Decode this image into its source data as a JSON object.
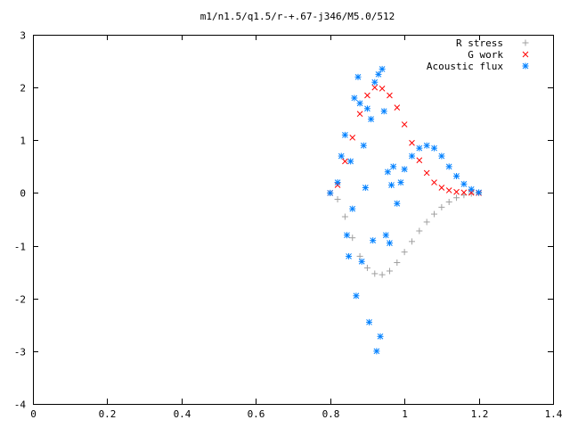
{
  "chart_data": {
    "type": "scatter",
    "title": "m1/n1.5/q1.5/r-+.67-j346/M5.0/512",
    "xlabel": "",
    "ylabel": "",
    "xlim": [
      0,
      1.4
    ],
    "ylim": [
      -4,
      3
    ],
    "x_ticks": [
      "0",
      "0.2",
      "0.4",
      "0.6",
      "0.8",
      "1",
      "1.2",
      "1.4"
    ],
    "y_ticks": [
      "-4",
      "-3",
      "-2",
      "-1",
      "0",
      "1",
      "2",
      "3"
    ],
    "grid": false,
    "legend_position": "top-right",
    "series": [
      {
        "name": "R stress",
        "marker": "+",
        "color": "#a0a0a0",
        "x": [
          0.8,
          0.82,
          0.84,
          0.86,
          0.88,
          0.9,
          0.92,
          0.94,
          0.96,
          0.98,
          1.0,
          1.02,
          1.04,
          1.06,
          1.08,
          1.1,
          1.12,
          1.14,
          1.16,
          1.18,
          1.2
        ],
        "y": [
          0,
          -0.12,
          -0.45,
          -0.85,
          -1.2,
          -1.42,
          -1.53,
          -1.55,
          -1.48,
          -1.32,
          -1.12,
          -0.92,
          -0.72,
          -0.55,
          -0.4,
          -0.27,
          -0.17,
          -0.09,
          -0.04,
          -0.01,
          0
        ]
      },
      {
        "name": "G work",
        "marker": "x",
        "color": "#ff0000",
        "x": [
          0.8,
          0.82,
          0.84,
          0.86,
          0.88,
          0.9,
          0.92,
          0.94,
          0.96,
          0.98,
          1.0,
          1.02,
          1.04,
          1.06,
          1.08,
          1.1,
          1.12,
          1.14,
          1.16,
          1.18,
          1.2
        ],
        "y": [
          0,
          0.15,
          0.6,
          1.05,
          1.5,
          1.85,
          2.0,
          1.98,
          1.85,
          1.62,
          1.3,
          0.95,
          0.62,
          0.38,
          0.2,
          0.1,
          0.05,
          0.02,
          0.01,
          0.005,
          0
        ]
      },
      {
        "name": "Acoustic flux",
        "marker": "*",
        "color": "#0080ff",
        "x": [
          0.8,
          0.82,
          0.83,
          0.84,
          0.845,
          0.85,
          0.855,
          0.86,
          0.865,
          0.87,
          0.875,
          0.88,
          0.885,
          0.89,
          0.895,
          0.9,
          0.905,
          0.91,
          0.915,
          0.92,
          0.925,
          0.93,
          0.935,
          0.94,
          0.945,
          0.95,
          0.955,
          0.96,
          0.965,
          0.97,
          0.98,
          0.99,
          1.0,
          1.02,
          1.04,
          1.06,
          1.08,
          1.1,
          1.12,
          1.14,
          1.16,
          1.18,
          1.2
        ],
        "y": [
          0,
          0.2,
          0.7,
          1.1,
          -0.8,
          -1.2,
          0.6,
          -0.3,
          1.8,
          -1.95,
          2.2,
          1.7,
          -1.3,
          0.9,
          0.1,
          1.6,
          -2.45,
          1.4,
          -0.9,
          2.1,
          -3.0,
          2.25,
          -2.72,
          2.35,
          1.55,
          -0.8,
          0.4,
          -0.95,
          0.15,
          0.5,
          -0.2,
          0.2,
          0.45,
          0.7,
          0.85,
          0.9,
          0.85,
          0.7,
          0.5,
          0.32,
          0.17,
          0.07,
          0.01
        ]
      }
    ]
  }
}
